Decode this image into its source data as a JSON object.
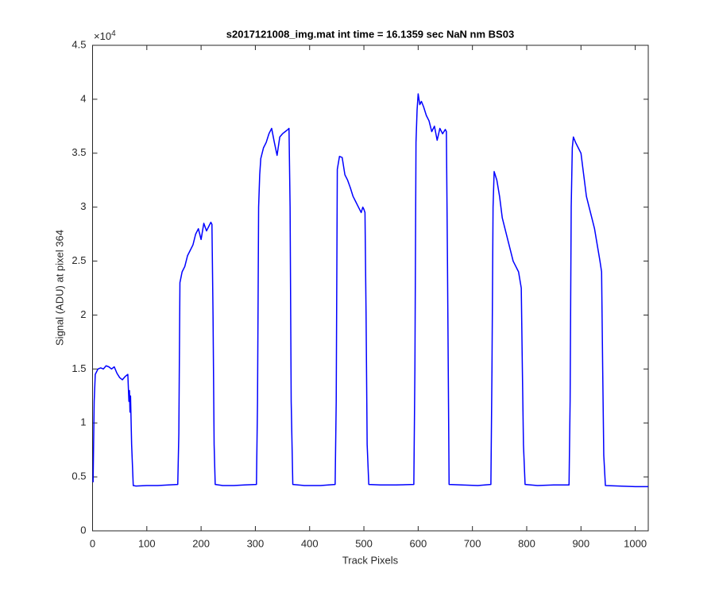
{
  "chart_data": {
    "type": "line",
    "title": "s2017121008_img.mat int time = 16.1359 sec  NaN nm BS03",
    "x_label": "Track Pixels",
    "y_label": "Signal (ADU) at pixel 364",
    "y_scale_label": {
      "base": "×10",
      "exponent": "4"
    },
    "xlim": [
      0,
      1024
    ],
    "ylim": [
      0,
      45000
    ],
    "xticks": [
      0,
      100,
      200,
      300,
      400,
      500,
      600,
      700,
      800,
      900,
      1000
    ],
    "yticks": [
      0,
      {
        "value": 5000,
        "label": "0.5"
      },
      {
        "value": 10000,
        "label": "1"
      },
      {
        "value": 15000,
        "label": "1.5"
      },
      {
        "value": 20000,
        "label": "2"
      },
      {
        "value": 25000,
        "label": "2.5"
      },
      {
        "value": 30000,
        "label": "3"
      },
      {
        "value": 35000,
        "label": "3.5"
      },
      {
        "value": 40000,
        "label": "4"
      },
      {
        "value": 45000,
        "label": "4.5"
      }
    ],
    "grid": false,
    "series": [
      {
        "color": "#0000ff",
        "x": [
          1,
          3,
          5,
          10,
          15,
          20,
          25,
          30,
          35,
          40,
          45,
          50,
          55,
          60,
          65,
          67,
          68,
          69,
          70,
          72,
          75,
          80,
          100,
          120,
          140,
          157,
          159,
          161,
          163,
          165,
          170,
          175,
          180,
          185,
          190,
          195,
          200,
          205,
          210,
          215,
          218,
          220,
          222,
          224,
          226,
          240,
          260,
          280,
          302,
          304,
          306,
          308,
          310,
          315,
          320,
          325,
          330,
          335,
          340,
          345,
          350,
          355,
          360,
          362,
          364,
          366,
          369,
          390,
          420,
          447,
          449,
          451,
          455,
          460,
          465,
          470,
          475,
          480,
          485,
          490,
          495,
          498,
          500,
          502,
          504,
          506,
          509,
          530,
          560,
          592,
          594,
          596,
          598,
          600,
          603,
          606,
          610,
          615,
          620,
          625,
          630,
          635,
          640,
          645,
          650,
          652,
          654,
          657,
          680,
          710,
          734,
          736,
          738,
          740,
          745,
          750,
          755,
          760,
          765,
          770,
          775,
          780,
          785,
          790,
          792,
          794,
          797,
          820,
          850,
          878,
          880,
          882,
          884,
          886,
          890,
          895,
          900,
          905,
          910,
          915,
          920,
          925,
          930,
          935,
          938,
          940,
          942,
          945,
          970,
          1000,
          1024
        ],
        "values": [
          4500,
          12000,
          14500,
          15000,
          15100,
          15000,
          15300,
          15200,
          15000,
          15200,
          14600,
          14200,
          14000,
          14300,
          14500,
          12000,
          13000,
          11000,
          12500,
          8000,
          4200,
          4150,
          4200,
          4200,
          4250,
          4300,
          9000,
          23000,
          23500,
          24000,
          24500,
          25500,
          26000,
          26500,
          27500,
          28000,
          27000,
          28500,
          27800,
          28300,
          28600,
          28400,
          20000,
          8000,
          4300,
          4200,
          4200,
          4250,
          4300,
          12000,
          30000,
          33000,
          34500,
          35500,
          36000,
          36800,
          37300,
          36000,
          34800,
          36500,
          36800,
          37000,
          37200,
          37300,
          30000,
          12000,
          4300,
          4200,
          4200,
          4300,
          12000,
          33500,
          34700,
          34600,
          33000,
          32500,
          31800,
          31000,
          30500,
          30000,
          29500,
          30000,
          29800,
          29500,
          20000,
          8000,
          4300,
          4250,
          4250,
          4300,
          15000,
          36000,
          39000,
          40500,
          39500,
          39800,
          39300,
          38500,
          38000,
          37000,
          37500,
          36200,
          37300,
          36800,
          37200,
          37000,
          25000,
          4300,
          4250,
          4200,
          4300,
          15000,
          30000,
          33300,
          32500,
          31000,
          29000,
          28000,
          27000,
          26000,
          25000,
          24500,
          24000,
          22500,
          15000,
          8000,
          4300,
          4200,
          4250,
          4250,
          12000,
          30000,
          35500,
          36500,
          36000,
          35500,
          35000,
          33000,
          31000,
          30000,
          29000,
          28000,
          26500,
          25000,
          24000,
          15000,
          7000,
          4200,
          4150,
          4100,
          4100
        ]
      }
    ]
  }
}
